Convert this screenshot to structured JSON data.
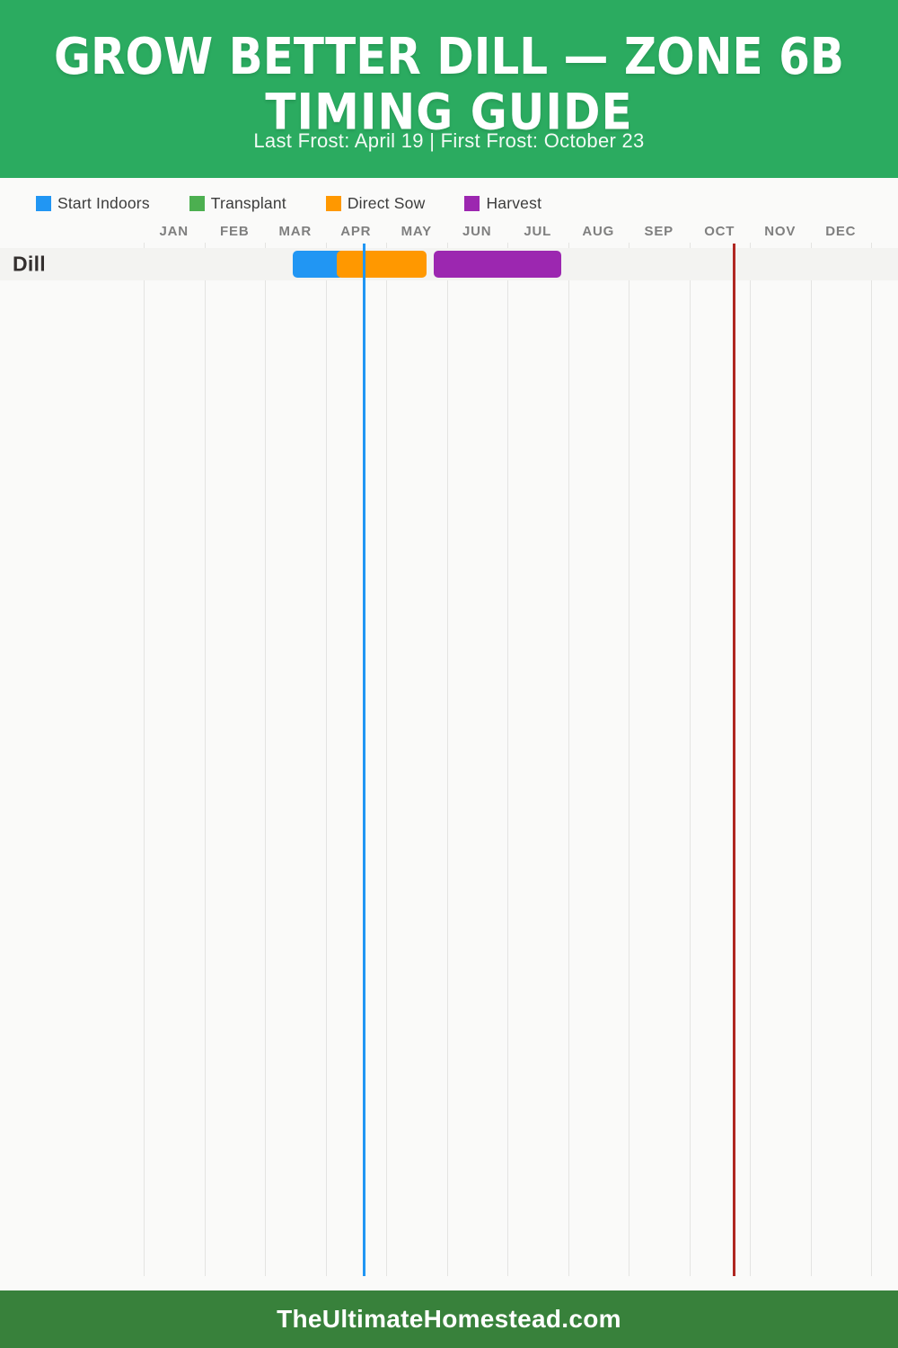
{
  "header": {
    "title_line1": "GROW BETTER DILL — ZONE 6B",
    "title_line2": "TIMING GUIDE",
    "subtitle": "Last Frost: April 19 | First Frost: October 23"
  },
  "legend": {
    "items": [
      {
        "name": "start-indoors",
        "label": "Start Indoors",
        "color": "#2196f3"
      },
      {
        "name": "transplant",
        "label": "Transplant",
        "color": "#4caf50"
      },
      {
        "name": "direct-sow",
        "label": "Direct Sow",
        "color": "#ff9800"
      },
      {
        "name": "harvest",
        "label": "Harvest",
        "color": "#9c27b0"
      }
    ]
  },
  "chart_data": {
    "type": "gantt-timeline",
    "title": "Grow Better Dill — Zone 6B Timing Guide",
    "months": [
      "JAN",
      "FEB",
      "MAR",
      "APR",
      "MAY",
      "JUN",
      "JUL",
      "AUG",
      "SEP",
      "OCT",
      "NOV",
      "DEC"
    ],
    "x_range_months": [
      0,
      12
    ],
    "grid": true,
    "rows": [
      {
        "label": "Dill",
        "bars": [
          {
            "series": "Start Indoors",
            "color": "#2196f3",
            "start_month": 2.46,
            "end_month": 3.19,
            "approx_dates": "Mar 15 – Apr 5"
          },
          {
            "series": "Direct Sow",
            "color": "#ff9800",
            "start_month": 3.19,
            "end_month": 4.67,
            "approx_dates": "Apr 5 – May 20"
          },
          {
            "series": "Harvest",
            "color": "#9c27b0",
            "start_month": 4.79,
            "end_month": 6.89,
            "approx_dates": "May 25 – Jul 28"
          }
        ]
      }
    ],
    "markers": [
      {
        "name": "last-frost-line",
        "label": "Last Frost: April 19",
        "month": 3.633,
        "color": "#2196f3"
      },
      {
        "name": "first-frost-line",
        "label": "First Frost: October 23",
        "month": 9.742,
        "color": "#b02722"
      }
    ]
  },
  "footer": {
    "site": "TheUltimateHomestead.com"
  },
  "colors": {
    "header_bg": "#2bab60",
    "footer_bg": "#38813b",
    "page_bg": "#fafaf9",
    "row_band": "#f3f3f1",
    "gridline": "#e4e4e2",
    "month_label": "#7f7f7f"
  }
}
